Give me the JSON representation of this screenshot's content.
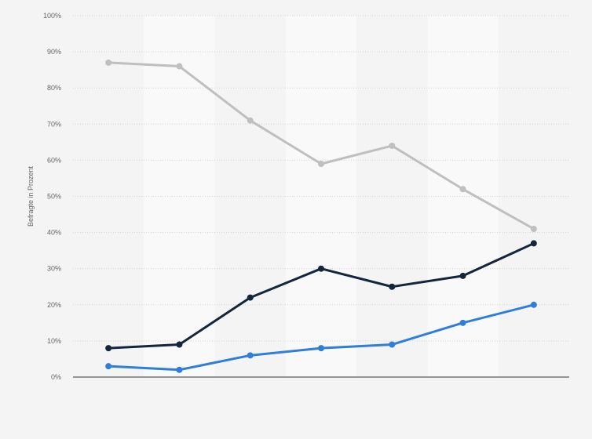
{
  "chart_data": {
    "type": "line",
    "ylabel": "Befragte in Prozent",
    "xlabel": "",
    "ylim": [
      0,
      100
    ],
    "yticks": [
      0,
      10,
      20,
      30,
      40,
      50,
      60,
      70,
      80,
      90,
      100
    ],
    "ytick_labels": [
      "0%",
      "10%",
      "20%",
      "30%",
      "40%",
      "50%",
      "60%",
      "70%",
      "80%",
      "90%",
      "100%"
    ],
    "categories": [
      "",
      "",
      "",
      "",
      "",
      "",
      ""
    ],
    "grid": true,
    "series": [
      {
        "color": "#bfbfbf",
        "values": [
          87,
          86,
          71,
          59,
          64,
          52,
          41
        ]
      },
      {
        "color": "#13263d",
        "values": [
          8,
          9,
          22,
          30,
          25,
          28,
          37
        ]
      },
      {
        "color": "#2f7ed8",
        "values": [
          3,
          2,
          6,
          8,
          9,
          15,
          20
        ]
      }
    ],
    "band_colors": [
      "#f4f4f4",
      "#f9f9f9"
    ]
  }
}
